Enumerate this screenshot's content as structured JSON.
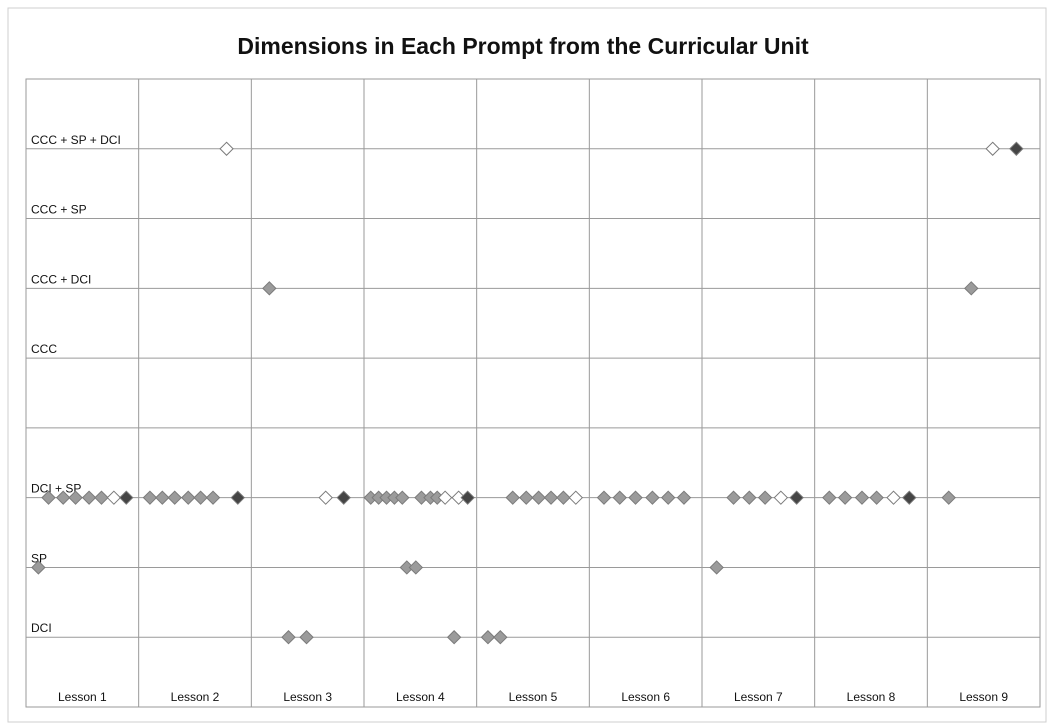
{
  "chart_data": {
    "type": "scatter",
    "title": "Dimensions in Each Prompt from the Curricular Unit",
    "categories": [
      "Lesson 1",
      "Lesson 2",
      "Lesson 3",
      "Lesson 4",
      "Lesson 5",
      "Lesson 6",
      "Lesson 7",
      "Lesson 8",
      "Lesson 9"
    ],
    "y_categories": [
      "DCI",
      "SP",
      "DCI + SP",
      null,
      "CCC",
      "CCC + DCI",
      "CCC + SP",
      "CCC + SP + DCI"
    ],
    "xlim": [
      0,
      9
    ],
    "xticks": [
      0,
      1,
      2,
      3,
      4,
      5,
      6,
      7,
      8,
      9
    ],
    "ylim": [
      -1,
      8
    ],
    "yticks": [
      0,
      1,
      2,
      3,
      4,
      5,
      6,
      7
    ],
    "grid": true,
    "series": [
      {
        "color": "#9b9b9b",
        "x": [
          0.2,
          0.33,
          0.44,
          0.56,
          0.67,
          1.1,
          1.21,
          1.32,
          1.44,
          1.55,
          1.66,
          3.06,
          3.13,
          3.2,
          3.27,
          3.34,
          3.51,
          3.59,
          3.65,
          4.32,
          4.44,
          4.55,
          4.66,
          4.77,
          5.13,
          5.27,
          5.41,
          5.56,
          5.7,
          5.84,
          6.28,
          6.42,
          6.56,
          7.13,
          7.27,
          7.42,
          7.55,
          8.19,
          0.11,
          3.38,
          3.46,
          6.13,
          2.33,
          2.49,
          3.8,
          4.1,
          4.21,
          2.16,
          8.39
        ],
        "y": [
          2,
          2,
          2,
          2,
          2,
          2,
          2,
          2,
          2,
          2,
          2,
          2,
          2,
          2,
          2,
          2,
          2,
          2,
          2,
          2,
          2,
          2,
          2,
          2,
          2,
          2,
          2,
          2,
          2,
          2,
          2,
          2,
          2,
          2,
          2,
          2,
          2,
          2,
          1,
          1,
          1,
          1,
          0,
          0,
          0,
          0,
          0,
          5,
          5
        ]
      },
      {
        "color": "#ffffff",
        "x": [
          0.78,
          2.66,
          3.72,
          3.84,
          4.88,
          6.7,
          7.7,
          1.78,
          8.58
        ],
        "y": [
          2,
          2,
          2,
          2,
          2,
          2,
          2,
          7,
          7
        ]
      },
      {
        "color": "#454545",
        "x": [
          0.89,
          1.88,
          2.82,
          3.92,
          6.84,
          7.84,
          8.79
        ],
        "y": [
          2,
          2,
          2,
          2,
          2,
          2,
          7
        ]
      }
    ]
  }
}
